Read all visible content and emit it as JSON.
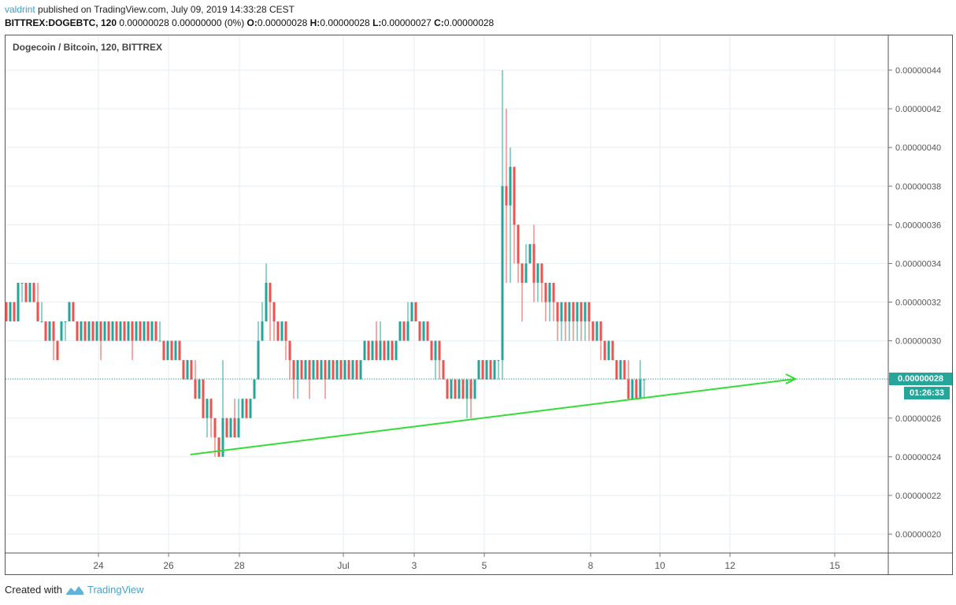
{
  "header": {
    "user": "valdrint",
    "published_text": " published on TradingView.com, July 09, 2019 14:33:28 CEST",
    "symbol": "BITTREX:DOGEBTC, 120",
    "last": "0.00000028",
    "change": "0.00000000 (0%)",
    "o_label": "O:",
    "o_value": "0.00000028",
    "h_label": "H:",
    "h_value": "0.00000028",
    "l_label": "L:",
    "l_value": "0.00000027",
    "c_label": "C:",
    "c_value": "0.00000028"
  },
  "pane": {
    "title": "Dogecoin / Bitcoin, 120, BITTREX"
  },
  "price_axis": {
    "current_price": "0.00000028",
    "countdown": "01:26:33"
  },
  "footer": {
    "created_with": "Created with",
    "brand": "TradingView"
  },
  "colors": {
    "up": "#26a69a",
    "down": "#ef5350",
    "trendline": "#33dd33",
    "grid": "#e6eef3",
    "price_line": "#26a69a"
  },
  "chart_data": {
    "type": "candlestick",
    "title": "Dogecoin / Bitcoin, 120, BITTREX",
    "xlabel": "",
    "ylabel": "",
    "x_ticks": [
      "24",
      "26",
      "28",
      "Jul",
      "3",
      "5",
      "8",
      "10",
      "12",
      "15"
    ],
    "y_ticks": [
      "0.00000044",
      "0.00000042",
      "0.00000040",
      "0.00000038",
      "0.00000036",
      "0.00000034",
      "0.00000032",
      "0.00000030",
      "0.00000028",
      "0.00000026",
      "0.00000024",
      "0.00000022",
      "0.00000020"
    ],
    "ylim": [
      1.95e-07,
      4.55e-07
    ],
    "grid": true,
    "current_price": 2.8e-07,
    "segments_approx": [
      {
        "period": "Jun 22-23",
        "range": [
          3.1e-07,
          3.3e-07
        ]
      },
      {
        "period": "Jun 23-25",
        "range": [
          2.9e-07,
          3.2e-07
        ]
      },
      {
        "period": "Jun 25-26",
        "range": [
          2.8e-07,
          3e-07
        ]
      },
      {
        "period": "Jun 26-27 (low)",
        "range": [
          2.4e-07,
          2.9e-07
        ]
      },
      {
        "period": "Jun 27-28 (spike)",
        "range": [
          2.7e-07,
          3.4e-07
        ]
      },
      {
        "period": "Jun 28-Jul 1",
        "range": [
          2.7e-07,
          3e-07
        ]
      },
      {
        "period": "Jul 1-3",
        "range": [
          2.9e-07,
          3.2e-07
        ]
      },
      {
        "period": "Jul 3-5",
        "range": [
          2.6e-07,
          2.9e-07
        ]
      },
      {
        "period": "Jul 5 (spike)",
        "range": [
          2.8e-07,
          4.4e-07
        ]
      },
      {
        "period": "Jul 5-7",
        "range": [
          3.1e-07,
          3.6e-07
        ]
      },
      {
        "period": "Jul 7-8",
        "range": [
          2.9e-07,
          3.2e-07
        ]
      },
      {
        "period": "Jul 8-9",
        "range": [
          2.7e-07,
          3e-07
        ]
      }
    ],
    "trendline": {
      "from": {
        "date": "Jun 26",
        "price": 2.41e-07
      },
      "to": {
        "date": "Jul 13",
        "price": 2.8e-07
      },
      "color": "#33dd33",
      "arrow": true
    }
  }
}
